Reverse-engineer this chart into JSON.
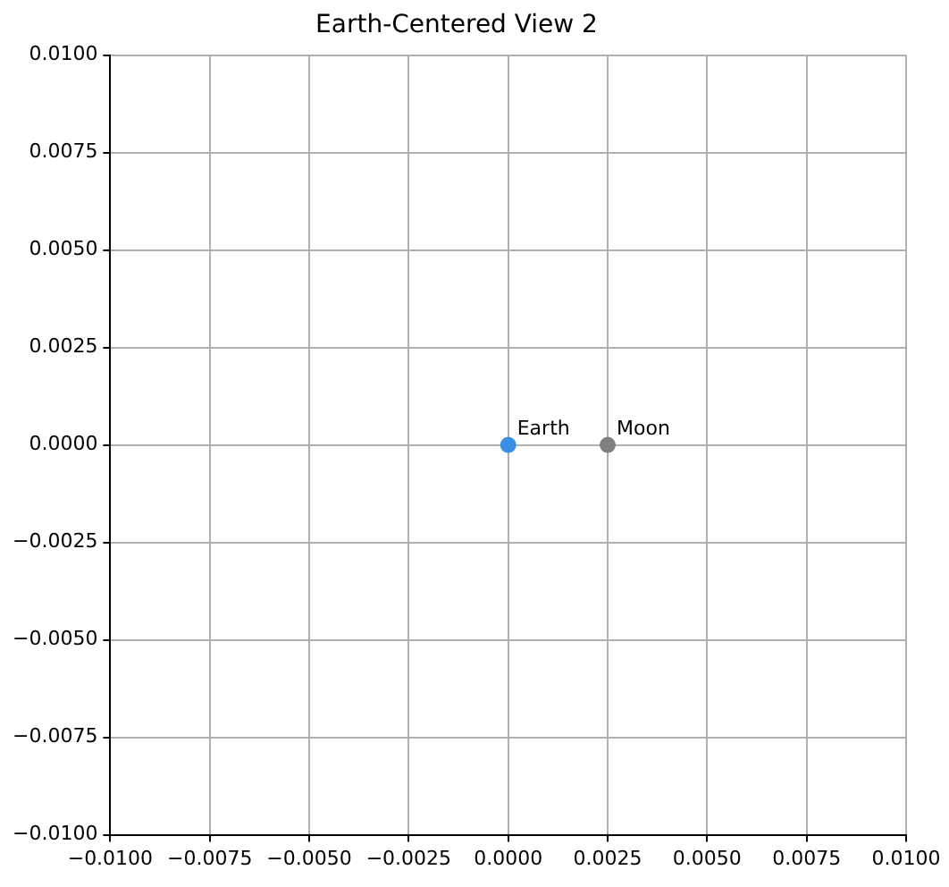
{
  "chart_data": {
    "type": "scatter",
    "title": "Earth-Centered View 2",
    "series": [
      {
        "name": "Earth",
        "color": "#3a8ee6",
        "x": [
          0
        ],
        "values": [
          0
        ]
      },
      {
        "name": "Moon",
        "color": "#808080",
        "x": [
          0.0025
        ],
        "values": [
          0
        ]
      }
    ],
    "xlim": [
      -0.01,
      0.01
    ],
    "xticks": [
      {
        "value": -0.01,
        "label": "−0.0100"
      },
      {
        "value": -0.0075,
        "label": "−0.0075"
      },
      {
        "value": -0.005,
        "label": "−0.0050"
      },
      {
        "value": -0.0025,
        "label": "−0.0025"
      },
      {
        "value": 0,
        "label": "0.0000"
      },
      {
        "value": 0.0025,
        "label": "0.0025"
      },
      {
        "value": 0.005,
        "label": "0.0050"
      },
      {
        "value": 0.0075,
        "label": "0.0075"
      },
      {
        "value": 0.01,
        "label": "0.0100"
      }
    ],
    "ylim": [
      -0.01,
      0.01
    ],
    "yticks": [
      {
        "value": -0.01,
        "label": "−0.0100"
      },
      {
        "value": -0.0075,
        "label": "−0.0075"
      },
      {
        "value": -0.005,
        "label": "−0.0050"
      },
      {
        "value": -0.0025,
        "label": "−0.0025"
      },
      {
        "value": 0,
        "label": "0.0000"
      },
      {
        "value": 0.0025,
        "label": "0.0025"
      },
      {
        "value": 0.005,
        "label": "0.0050"
      },
      {
        "value": 0.0075,
        "label": "0.0075"
      },
      {
        "value": 0.01,
        "label": "0.0100"
      }
    ],
    "grid": true,
    "marker": "circle",
    "legend": false
  }
}
